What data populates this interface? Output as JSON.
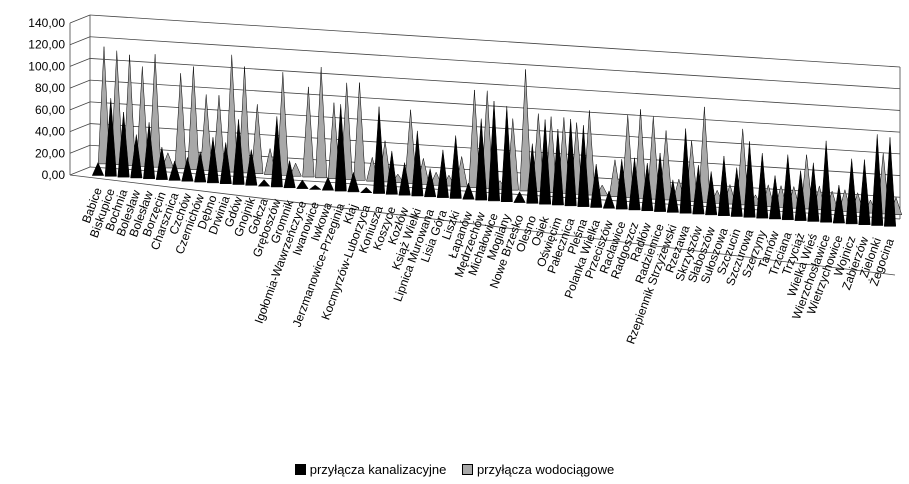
{
  "chart_data": {
    "type": "area",
    "y_ticks": [
      "0,00",
      "20,00",
      "40,00",
      "60,00",
      "80,00",
      "100,00",
      "120,00",
      "140,00"
    ],
    "ylim": [
      0,
      140
    ],
    "categories": [
      "Babice",
      "Biskupice",
      "Bochnia",
      "Bolesław",
      "Bolesław",
      "Borzęcin",
      "Charsznica",
      "Czchów",
      "Czernichów",
      "Dębno",
      "Drwinia",
      "Gdów",
      "Gnojnik",
      "Gołcza",
      "Gręboszów",
      "Gromnik",
      "Igołomia-Wawrzeńczyce",
      "Iwanowice",
      "Iwkowa",
      "Jerzmanowice-Przeginia",
      "Kłaj",
      "Kocmyrzów-Luborzyca",
      "Koniusza",
      "Koszyce",
      "Kozłów",
      "Książ Wielki",
      "Lipnica Murowana",
      "Lisia Góra",
      "Liszki",
      "Łapanów",
      "Mędrzechów",
      "Michałowice",
      "Mogilany",
      "Nowe Brzesko",
      "Olesno",
      "Osiek",
      "Oświęcim",
      "Pałecznica",
      "Pleśna",
      "Polanka Wielka",
      "Przeciszów",
      "Racławice",
      "Radgoszcz",
      "Radłów",
      "Radziemice",
      "Rzepiennik Strzyżewski",
      "Rzezawa",
      "Skrzyszów",
      "Słaboszów",
      "Sułoszowa",
      "Szczucin",
      "Szczurowa",
      "Szerzyny",
      "Tarnów",
      "Trzciana",
      "Trzyciąż",
      "Wielka Wieś",
      "Wierzchosławice",
      "Wietrzychowice",
      "Wojnicz",
      "Zabierzów",
      "Zielonki",
      "Żegocina"
    ],
    "series": [
      {
        "name": "przyłącza kanalizacyjne",
        "color": "#000000",
        "values": [
          12,
          72,
          60,
          40,
          52,
          30,
          18,
          22,
          28,
          42,
          38,
          60,
          33,
          6,
          65,
          25,
          8,
          4,
          12,
          80,
          18,
          5,
          80,
          40,
          30,
          60,
          26,
          44,
          58,
          15,
          75,
          92,
          88,
          10,
          55,
          78,
          70,
          80,
          75,
          40,
          16,
          46,
          48,
          44,
          54,
          30,
          78,
          45,
          40,
          55,
          45,
          70,
          60,
          40,
          60,
          46,
          54,
          75,
          35,
          60,
          60,
          84,
          82
        ]
      },
      {
        "name": "przyłącza wodociągowe",
        "color": "#a8a8a8",
        "values": [
          108,
          105,
          102,
          92,
          104,
          14,
          88,
          95,
          70,
          70,
          108,
          98,
          64,
          24,
          95,
          12,
          83,
          102,
          70,
          89,
          90,
          22,
          38,
          8,
          68,
          24,
          12,
          10,
          28,
          90,
          90,
          8,
          66,
          112,
          72,
          70,
          70,
          66,
          78,
          10,
          34,
          76,
          82,
          76,
          64,
          20,
          56,
          88,
          12,
          18,
          70,
          10,
          20,
          20,
          20,
          50,
          22,
          18,
          20,
          18,
          12,
          56,
          16
        ]
      }
    ],
    "legend_position": "bottom"
  }
}
